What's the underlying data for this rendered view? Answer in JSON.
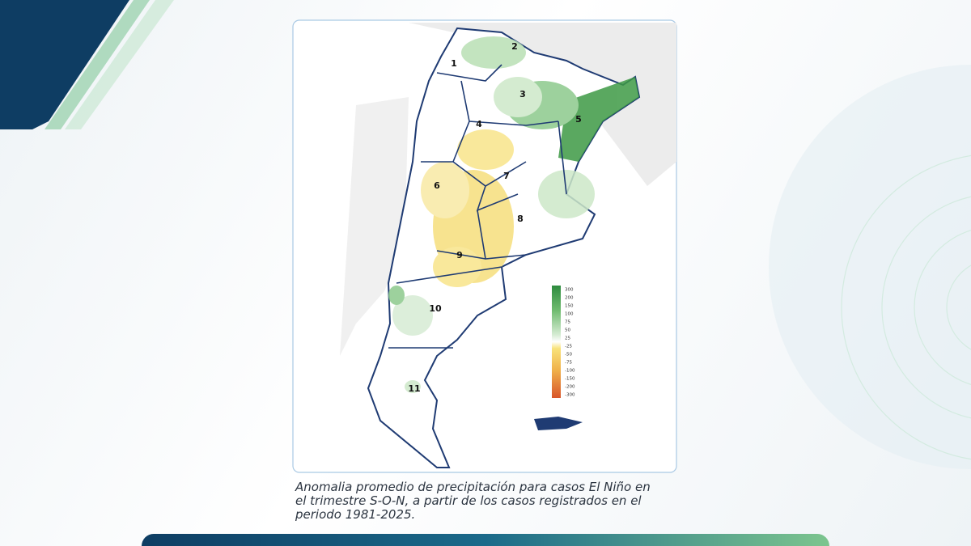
{
  "map": {
    "regions": [
      {
        "label": "1"
      },
      {
        "label": "2"
      },
      {
        "label": "3"
      },
      {
        "label": "4"
      },
      {
        "label": "5"
      },
      {
        "label": "6"
      },
      {
        "label": "7"
      },
      {
        "label": "8"
      },
      {
        "label": "9"
      },
      {
        "label": "10"
      },
      {
        "label": "11"
      }
    ],
    "legend": {
      "ticks": [
        "300",
        "200",
        "150",
        "100",
        "75",
        "50",
        "25",
        "-25",
        "-50",
        "-75",
        "-100",
        "-150",
        "-200",
        "-300"
      ]
    }
  },
  "caption": {
    "lines": [
      "Anomalia promedio de precipitación para casos El Niño en",
      "el trimestre S-O-N, a partir de los casos registrados en el",
      "periodo 1981-2025."
    ]
  }
}
